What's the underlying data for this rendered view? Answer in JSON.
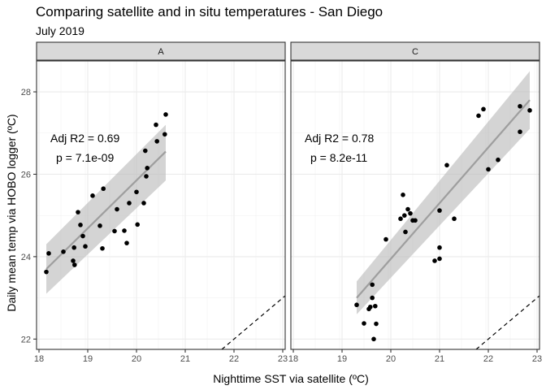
{
  "chart_data": {
    "type": "scatter",
    "title": "Comparing satellite and in situ temperatures - San Diego",
    "subtitle": "July 2019",
    "xlabel": "Nighttime SST via satellite (ºC)",
    "ylabel": "Daily mean temp via HOBO logger (ºC)",
    "xlim": [
      17.95,
      23.05
    ],
    "ylim": [
      21.75,
      28.75
    ],
    "x_ticks": [
      18,
      19,
      20,
      21,
      22,
      23
    ],
    "y_ticks": [
      22,
      24,
      26,
      28
    ],
    "grid": true,
    "reference_line": "y = x",
    "panels": [
      {
        "label": "A",
        "annotation_r2": "Adj R2 = 0.69",
        "annotation_p": "p = 7.1e-09",
        "fit": {
          "x": [
            18.15,
            20.6
          ],
          "y": [
            23.7,
            26.55
          ],
          "ci_start": [
            23.1,
            24.3
          ],
          "ci_end": [
            25.85,
            27.2
          ]
        },
        "points": [
          [
            18.15,
            23.63
          ],
          [
            18.2,
            24.08
          ],
          [
            18.5,
            24.12
          ],
          [
            18.7,
            23.9
          ],
          [
            18.72,
            24.22
          ],
          [
            18.73,
            23.8
          ],
          [
            18.8,
            25.08
          ],
          [
            18.85,
            24.77
          ],
          [
            18.9,
            24.5
          ],
          [
            18.95,
            24.25
          ],
          [
            19.1,
            25.48
          ],
          [
            19.25,
            24.75
          ],
          [
            19.3,
            24.2
          ],
          [
            19.32,
            25.65
          ],
          [
            19.55,
            24.62
          ],
          [
            19.6,
            25.15
          ],
          [
            19.75,
            24.63
          ],
          [
            19.8,
            24.33
          ],
          [
            19.85,
            25.3
          ],
          [
            20.0,
            25.57
          ],
          [
            20.02,
            24.78
          ],
          [
            20.15,
            25.3
          ],
          [
            20.18,
            26.57
          ],
          [
            20.2,
            25.95
          ],
          [
            20.22,
            26.15
          ],
          [
            20.4,
            27.2
          ],
          [
            20.42,
            26.8
          ],
          [
            20.58,
            26.97
          ],
          [
            20.6,
            27.45
          ]
        ]
      },
      {
        "label": "C",
        "annotation_r2": "Adj R2 = 0.78",
        "annotation_p": "p = 8.2e-11",
        "fit": {
          "x": [
            19.3,
            22.85
          ],
          "y": [
            23.0,
            27.8
          ],
          "ci_start": [
            22.6,
            23.4
          ],
          "ci_end": [
            27.1,
            28.5
          ]
        },
        "points": [
          [
            19.3,
            22.83
          ],
          [
            19.45,
            22.38
          ],
          [
            19.55,
            22.73
          ],
          [
            19.58,
            22.78
          ],
          [
            19.62,
            23.0
          ],
          [
            19.62,
            23.32
          ],
          [
            19.65,
            22.0
          ],
          [
            19.68,
            22.8
          ],
          [
            19.7,
            22.37
          ],
          [
            19.9,
            24.42
          ],
          [
            20.2,
            24.92
          ],
          [
            20.25,
            25.5
          ],
          [
            20.28,
            25.0
          ],
          [
            20.3,
            24.6
          ],
          [
            20.35,
            25.15
          ],
          [
            20.4,
            25.05
          ],
          [
            20.45,
            24.88
          ],
          [
            20.5,
            24.88
          ],
          [
            20.9,
            23.9
          ],
          [
            21.0,
            24.22
          ],
          [
            21.0,
            23.95
          ],
          [
            21.0,
            25.12
          ],
          [
            21.15,
            26.22
          ],
          [
            21.3,
            24.92
          ],
          [
            21.8,
            27.42
          ],
          [
            21.9,
            27.58
          ],
          [
            22.0,
            26.12
          ],
          [
            22.2,
            26.35
          ],
          [
            22.65,
            27.65
          ],
          [
            22.65,
            27.03
          ],
          [
            22.85,
            27.55
          ]
        ]
      }
    ]
  }
}
